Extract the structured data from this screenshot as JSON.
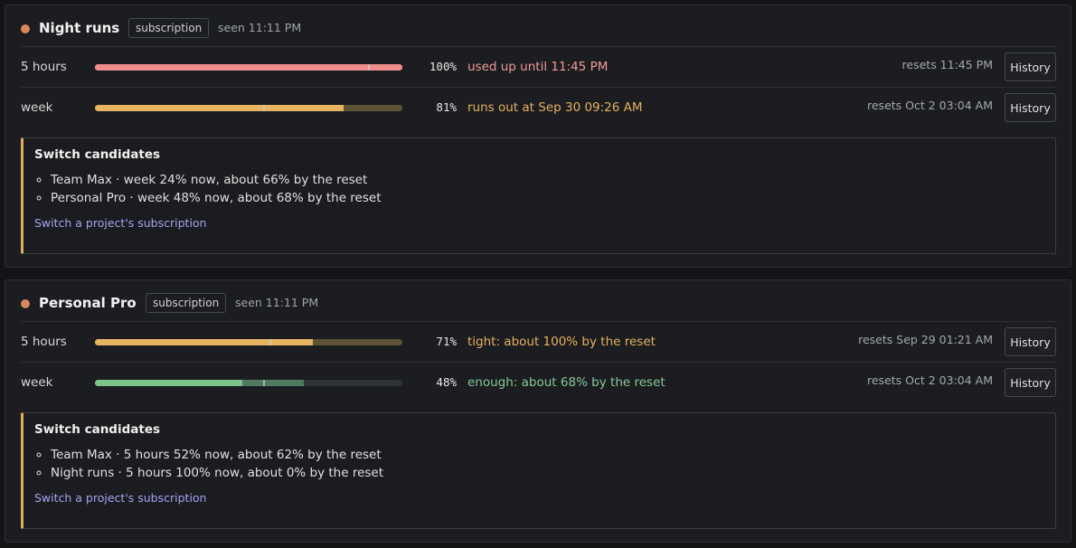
{
  "panels": [
    {
      "title": "Night runs",
      "badge": "subscription",
      "seen": "seen 11:11 PM",
      "dot_color": "#d9875e",
      "rows": [
        {
          "label": "5 hours",
          "value": 100,
          "value_label": "100%",
          "projected": 100,
          "elapsed": 89,
          "status": "used up until 11:45 PM",
          "resets": "resets 11:45 PM",
          "button": "History",
          "color": "#f08c8c",
          "projection_color": "#f08c8c",
          "track": "#5e3a3a",
          "status_color": "#f19a9a"
        },
        {
          "label": "week",
          "value": 81,
          "value_label": "81%",
          "projected": 100,
          "elapsed": 55,
          "status": "runs out at Sep 30 09:26 AM",
          "resets": "resets Oct 2 03:04 AM",
          "button": "History",
          "color": "#e8b462",
          "projection_color": "#5e5237",
          "track": "#5e5237",
          "status_color": "#e6b15f"
        }
      ],
      "candidates": {
        "title": "Switch candidates",
        "items": [
          "Team Max · week 24% now, about 66% by the reset",
          "Personal Pro · week 48% now, about 68% by the reset"
        ],
        "link": "Switch a project's subscription"
      }
    },
    {
      "title": "Personal Pro",
      "badge": "subscription",
      "seen": "seen 11:11 PM",
      "dot_color": "#d9875e",
      "rows": [
        {
          "label": "5 hours",
          "value": 71,
          "value_label": "71%",
          "projected": 100,
          "elapsed": 57,
          "status": "tight: about 100% by the reset",
          "resets": "resets Sep 29 01:21 AM",
          "button": "History",
          "color": "#e8b462",
          "projection_color": "#5e5237",
          "track": "#5e5237",
          "status_color": "#e6b15f"
        },
        {
          "label": "week",
          "value": 48,
          "value_label": "48%",
          "projected": 68,
          "elapsed": 55,
          "status": "enough: about 68% by the reset",
          "resets": "resets Oct 2 03:04 AM",
          "button": "History",
          "color": "#7cc48c",
          "projection_color": "#4f7a5f",
          "track": "#2e3436",
          "status_color": "#86c79a"
        }
      ],
      "candidates": {
        "title": "Switch candidates",
        "items": [
          "Team Max · 5 hours 52% now, about 62% by the reset",
          "Night runs · 5 hours 100% now, about 0% by the reset"
        ],
        "link": "Switch a project's subscription"
      }
    }
  ]
}
